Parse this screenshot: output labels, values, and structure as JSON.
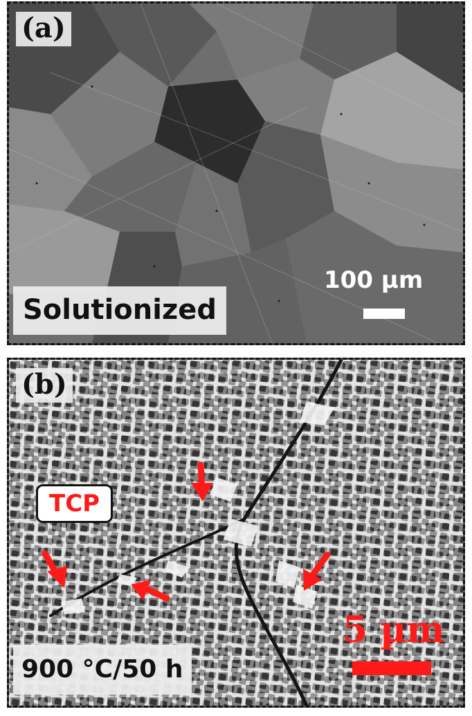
{
  "panel_a": {
    "letter": "(a)",
    "condition": "Solutionized",
    "scale_label": "100 µm"
  },
  "panel_b": {
    "letter": "(b)",
    "condition": "900 °C/50 h",
    "scale_label": "5 µm",
    "annotation": "TCP"
  },
  "colors": {
    "annotation_red": "#ff1a1a",
    "scale_white": "#ffffff",
    "label_background": "#ebebeb"
  }
}
